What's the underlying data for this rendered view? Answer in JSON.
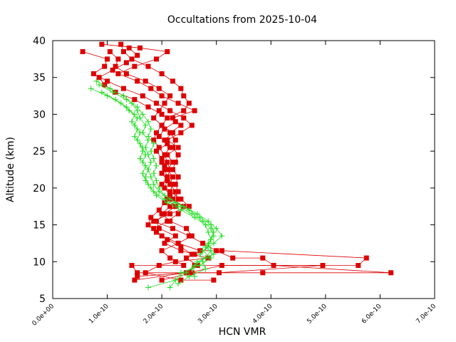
{
  "chart_data": {
    "type": "line",
    "title": "Occultations from 2025-10-04",
    "xlabel": "HCN VMR",
    "ylabel": "Altitude (km)",
    "xlim": [
      0,
      7e-10
    ],
    "ylim": [
      5,
      40
    ],
    "x_ticks": [
      "0.0e+00",
      "1.0e-10",
      "2.0e-10",
      "3.0e-10",
      "4.0e-10",
      "5.0e-10",
      "6.0e-10",
      "7.0e-10"
    ],
    "y_ticks": [
      "5",
      "10",
      "15",
      "20",
      "25",
      "30",
      "35",
      "40"
    ],
    "grid": false,
    "legend": "none",
    "colors": {
      "red_series": "#dd0000",
      "green_series": "#22dd22"
    },
    "series": [
      {
        "color": "red",
        "marker": "square",
        "points": [
          [
            9e-11,
            39.5
          ],
          [
            1.6e-10,
            39.0
          ],
          [
            2.1e-10,
            38.5
          ],
          [
            1.9e-10,
            37.5
          ],
          [
            1.5e-10,
            36.5
          ],
          [
            1.2e-10,
            35.5
          ],
          [
            1.55e-10,
            34.5
          ],
          [
            1.8e-10,
            33.5
          ],
          [
            2e-10,
            32.5
          ],
          [
            2.3e-10,
            31.5
          ],
          [
            2.6e-10,
            30.5
          ],
          [
            2.2e-10,
            29.5
          ],
          [
            2.35e-10,
            28.5
          ],
          [
            2.15e-10,
            27.5
          ],
          [
            2.25e-10,
            26.5
          ],
          [
            2.2e-10,
            25.5
          ],
          [
            2.3e-10,
            24.5
          ],
          [
            2.25e-10,
            23.5
          ],
          [
            2.2e-10,
            22.5
          ],
          [
            2.3e-10,
            21.5
          ],
          [
            2.25e-10,
            20.5
          ],
          [
            2.3e-10,
            19.5
          ],
          [
            2.2e-10,
            18.5
          ],
          [
            2.4e-10,
            17.5
          ],
          [
            2.3e-10,
            16.5
          ],
          [
            2.1e-10,
            15.5
          ],
          [
            1.85e-10,
            14.5
          ],
          [
            2e-10,
            13.5
          ],
          [
            2.3e-10,
            12.5
          ],
          [
            2.7e-10,
            11.5
          ],
          [
            3.1e-10,
            11.5
          ],
          [
            5.75e-10,
            10.5
          ],
          [
            5.6e-10,
            9.5
          ],
          [
            2.6e-10,
            9.5
          ],
          [
            2.45e-10,
            8.5
          ],
          [
            1.5e-10,
            7.5
          ]
        ]
      },
      {
        "color": "red",
        "marker": "square",
        "points": [
          [
            1.25e-10,
            39.5
          ],
          [
            1.3e-10,
            38.5
          ],
          [
            1.45e-10,
            37.5
          ],
          [
            1.75e-10,
            36.5
          ],
          [
            2e-10,
            35.5
          ],
          [
            2.2e-10,
            34.5
          ],
          [
            2.35e-10,
            33.5
          ],
          [
            2.4e-10,
            32.5
          ],
          [
            2.5e-10,
            31.5
          ],
          [
            2.4e-10,
            30.5
          ],
          [
            2.1e-10,
            29.5
          ],
          [
            2e-10,
            28.5
          ],
          [
            2.2e-10,
            27.5
          ],
          [
            2.05e-10,
            26.5
          ],
          [
            2.15e-10,
            25.5
          ],
          [
            2.05e-10,
            24.5
          ],
          [
            2.1e-10,
            23.5
          ],
          [
            2.15e-10,
            22.5
          ],
          [
            2.1e-10,
            21.5
          ],
          [
            2.2e-10,
            20.5
          ],
          [
            2.15e-10,
            19.5
          ],
          [
            2.35e-10,
            18.5
          ],
          [
            2.5e-10,
            17.5
          ],
          [
            2.15e-10,
            16.5
          ],
          [
            1.85e-10,
            15.5
          ],
          [
            2.2e-10,
            14.5
          ],
          [
            2.5e-10,
            13.5
          ],
          [
            2.75e-10,
            12.5
          ],
          [
            3e-10,
            11.5
          ],
          [
            3.3e-10,
            10.5
          ],
          [
            3.85e-10,
            10.5
          ],
          [
            4.05e-10,
            9.5
          ],
          [
            6.2e-10,
            8.5
          ],
          [
            3.85e-10,
            8.5
          ],
          [
            2.55e-10,
            8.5
          ],
          [
            2e-10,
            7.5
          ]
        ]
      },
      {
        "color": "red",
        "marker": "square",
        "points": [
          [
            5.5e-11,
            38.5
          ],
          [
            1e-10,
            37.5
          ],
          [
            9.5e-11,
            36.5
          ],
          [
            7.5e-11,
            35.5
          ],
          [
            1e-10,
            34.5
          ],
          [
            1.3e-10,
            33.5
          ],
          [
            1.65e-10,
            32.5
          ],
          [
            1.9e-10,
            31.5
          ],
          [
            2.15e-10,
            30.5
          ],
          [
            2.4e-10,
            29.5
          ],
          [
            2.55e-10,
            28.5
          ],
          [
            2.35e-10,
            27.5
          ],
          [
            2.1e-10,
            26.5
          ],
          [
            2.3e-10,
            25.5
          ],
          [
            2.1e-10,
            24.5
          ],
          [
            2.2e-10,
            23.5
          ],
          [
            2.1e-10,
            22.5
          ],
          [
            2.2e-10,
            21.5
          ],
          [
            2.15e-10,
            20.5
          ],
          [
            2.25e-10,
            19.5
          ],
          [
            2.3e-10,
            18.5
          ],
          [
            2.15e-10,
            17.5
          ],
          [
            2e-10,
            16.5
          ],
          [
            2.15e-10,
            15.5
          ],
          [
            2.45e-10,
            14.5
          ],
          [
            2.55e-10,
            13.5
          ],
          [
            2.3e-10,
            12.5
          ],
          [
            2e-10,
            11.5
          ],
          [
            2.15e-10,
            10.5
          ],
          [
            2.4e-10,
            9.5
          ],
          [
            1.45e-10,
            9.5
          ],
          [
            1.55e-10,
            8.5
          ],
          [
            3.05e-10,
            8.5
          ],
          [
            4.95e-10,
            9.5
          ],
          [
            3.1e-10,
            9.5
          ],
          [
            2.5e-10,
            8.5
          ]
        ]
      },
      {
        "color": "red",
        "marker": "square",
        "points": [
          [
            1.4e-10,
            39.0
          ],
          [
            1.55e-10,
            38.0
          ],
          [
            1.35e-10,
            37.0
          ],
          [
            1.1e-10,
            36.0
          ],
          [
            8.5e-11,
            35.0
          ],
          [
            9.5e-11,
            34.0
          ],
          [
            1.15e-10,
            33.0
          ],
          [
            1.5e-10,
            32.0
          ],
          [
            1.75e-10,
            31.0
          ],
          [
            2e-10,
            30.0
          ],
          [
            2.25e-10,
            29.0
          ],
          [
            2.05e-10,
            28.0
          ],
          [
            1.95e-10,
            27.0
          ],
          [
            2.1e-10,
            26.0
          ],
          [
            1.9e-10,
            25.0
          ],
          [
            2e-10,
            24.0
          ],
          [
            2.05e-10,
            23.0
          ],
          [
            2e-10,
            22.0
          ],
          [
            2.1e-10,
            21.0
          ],
          [
            2.05e-10,
            20.0
          ],
          [
            2.15e-10,
            19.0
          ],
          [
            2.05e-10,
            18.0
          ],
          [
            1.95e-10,
            17.0
          ],
          [
            1.8e-10,
            16.0
          ],
          [
            1.75e-10,
            15.0
          ],
          [
            1.9e-10,
            14.0
          ],
          [
            2.1e-10,
            13.0
          ],
          [
            2.35e-10,
            12.0
          ],
          [
            2.55e-10,
            11.0
          ],
          [
            2.85e-10,
            10.5
          ],
          [
            2.25e-10,
            10.0
          ],
          [
            1.95e-10,
            9.5
          ],
          [
            1.7e-10,
            8.5
          ],
          [
            2.35e-10,
            7.5
          ],
          [
            2.95e-10,
            7.5
          ]
        ]
      },
      {
        "color": "red",
        "marker": "square",
        "points": [
          [
            1.05e-10,
            38.5
          ],
          [
            1.2e-10,
            37.5
          ],
          [
            1.15e-10,
            36.5
          ],
          [
            1.35e-10,
            35.5
          ],
          [
            1.7e-10,
            34.5
          ],
          [
            1.95e-10,
            33.5
          ],
          [
            2.15e-10,
            32.5
          ],
          [
            2.05e-10,
            31.5
          ],
          [
            1.95e-10,
            30.5
          ],
          [
            1.85e-10,
            29.5
          ],
          [
            2e-10,
            28.5
          ],
          [
            1.9e-10,
            27.5
          ],
          [
            1.85e-10,
            26.5
          ],
          [
            1.95e-10,
            25.5
          ],
          [
            2.05e-10,
            24.5
          ],
          [
            2e-10,
            23.5
          ],
          [
            2.05e-10,
            22.5
          ],
          [
            2.1e-10,
            21.5
          ],
          [
            2e-10,
            20.5
          ],
          [
            2.15e-10,
            19.5
          ],
          [
            2.1e-10,
            18.5
          ],
          [
            2.25e-10,
            17.5
          ],
          [
            2.05e-10,
            16.5
          ],
          [
            1.9e-10,
            15.5
          ],
          [
            1.95e-10,
            14.5
          ],
          [
            2.25e-10,
            13.5
          ],
          [
            2.05e-10,
            12.5
          ],
          [
            2.35e-10,
            11.5
          ],
          [
            2.6e-10,
            11.0
          ],
          [
            2.45e-10,
            10.5
          ],
          [
            2.65e-10,
            9.5
          ],
          [
            2.45e-10,
            8.5
          ],
          [
            1.55e-10,
            8.0
          ]
        ]
      },
      {
        "color": "green",
        "marker": "plus",
        "points": [
          [
            7e-11,
            33.5
          ],
          [
            1e-10,
            32.5
          ],
          [
            1.25e-10,
            31.5
          ],
          [
            1.4e-10,
            30.5
          ],
          [
            1.55e-10,
            29.5
          ],
          [
            1.5e-10,
            28.5
          ],
          [
            1.6e-10,
            27.5
          ],
          [
            1.55e-10,
            26.5
          ],
          [
            1.65e-10,
            25.5
          ],
          [
            1.7e-10,
            24.5
          ],
          [
            1.65e-10,
            23.5
          ],
          [
            1.75e-10,
            22.5
          ],
          [
            1.7e-10,
            21.5
          ],
          [
            1.75e-10,
            20.5
          ],
          [
            1.85e-10,
            19.5
          ],
          [
            2.05e-10,
            18.5
          ],
          [
            2.3e-10,
            17.5
          ],
          [
            2.55e-10,
            16.5
          ],
          [
            2.75e-10,
            15.5
          ],
          [
            2.9e-10,
            14.5
          ],
          [
            2.95e-10,
            13.5
          ],
          [
            2.85e-10,
            12.5
          ],
          [
            2.9e-10,
            11.5
          ],
          [
            2.8e-10,
            10.5
          ],
          [
            2.6e-10,
            9.5
          ],
          [
            2.45e-10,
            8.5
          ],
          [
            2.25e-10,
            7.5
          ],
          [
            1.75e-10,
            6.5
          ]
        ]
      },
      {
        "color": "green",
        "marker": "plus",
        "points": [
          [
            8e-11,
            34.5
          ],
          [
            1.05e-10,
            33.5
          ],
          [
            1.3e-10,
            32.5
          ],
          [
            1.45e-10,
            31.5
          ],
          [
            1.55e-10,
            30.5
          ],
          [
            1.6e-10,
            29.5
          ],
          [
            1.7e-10,
            28.5
          ],
          [
            1.65e-10,
            27.5
          ],
          [
            1.75e-10,
            26.5
          ],
          [
            1.7e-10,
            25.5
          ],
          [
            1.75e-10,
            24.5
          ],
          [
            1.8e-10,
            23.5
          ],
          [
            1.75e-10,
            22.5
          ],
          [
            1.8e-10,
            21.5
          ],
          [
            1.85e-10,
            20.5
          ],
          [
            1.95e-10,
            19.5
          ],
          [
            2.15e-10,
            18.5
          ],
          [
            2.4e-10,
            17.5
          ],
          [
            2.65e-10,
            16.5
          ],
          [
            2.85e-10,
            15.5
          ],
          [
            3e-10,
            14.5
          ],
          [
            3.1e-10,
            13.5
          ],
          [
            2.95e-10,
            12.5
          ],
          [
            2.75e-10,
            11.5
          ],
          [
            2.9e-10,
            10.5
          ],
          [
            2.7e-10,
            9.5
          ],
          [
            2.35e-10,
            8.5
          ],
          [
            2.15e-10,
            6.5
          ]
        ]
      },
      {
        "color": "green",
        "marker": "plus",
        "points": [
          [
            9e-11,
            33.0
          ],
          [
            1.15e-10,
            32.0
          ],
          [
            1.35e-10,
            31.0
          ],
          [
            1.5e-10,
            30.0
          ],
          [
            1.45e-10,
            29.0
          ],
          [
            1.55e-10,
            28.0
          ],
          [
            1.5e-10,
            27.0
          ],
          [
            1.6e-10,
            26.0
          ],
          [
            1.65e-10,
            25.0
          ],
          [
            1.6e-10,
            24.0
          ],
          [
            1.7e-10,
            23.0
          ],
          [
            1.65e-10,
            22.0
          ],
          [
            1.7e-10,
            21.0
          ],
          [
            1.8e-10,
            20.0
          ],
          [
            1.9e-10,
            19.0
          ],
          [
            2.1e-10,
            18.0
          ],
          [
            2.35e-10,
            17.0
          ],
          [
            2.6e-10,
            16.0
          ],
          [
            2.8e-10,
            15.0
          ],
          [
            2.85e-10,
            14.0
          ],
          [
            2.9e-10,
            13.0
          ],
          [
            2.8e-10,
            12.0
          ],
          [
            2.95e-10,
            11.0
          ],
          [
            2.65e-10,
            10.0
          ],
          [
            2.55e-10,
            9.0
          ],
          [
            2.6e-10,
            8.0
          ]
        ]
      },
      {
        "color": "green",
        "marker": "plus",
        "points": [
          [
            8.5e-11,
            34.0
          ],
          [
            1.1e-10,
            33.0
          ],
          [
            1.35e-10,
            32.0
          ],
          [
            1.55e-10,
            31.0
          ],
          [
            1.65e-10,
            30.0
          ],
          [
            1.75e-10,
            29.0
          ],
          [
            1.8e-10,
            28.0
          ],
          [
            1.75e-10,
            27.0
          ],
          [
            1.85e-10,
            26.0
          ],
          [
            1.8e-10,
            25.0
          ],
          [
            1.85e-10,
            24.0
          ],
          [
            1.9e-10,
            23.0
          ],
          [
            1.85e-10,
            22.0
          ],
          [
            1.9e-10,
            21.0
          ],
          [
            1.95e-10,
            20.0
          ],
          [
            2.05e-10,
            19.0
          ],
          [
            2.25e-10,
            18.0
          ],
          [
            2.5e-10,
            17.0
          ],
          [
            2.7e-10,
            16.0
          ],
          [
            2.9e-10,
            15.0
          ],
          [
            2.95e-10,
            14.0
          ],
          [
            2.9e-10,
            13.0
          ],
          [
            2.85e-10,
            12.0
          ],
          [
            2.7e-10,
            11.0
          ],
          [
            2.75e-10,
            10.0
          ],
          [
            2.8e-10,
            9.0
          ],
          [
            2.5e-10,
            8.0
          ],
          [
            2.3e-10,
            7.0
          ]
        ]
      }
    ]
  }
}
